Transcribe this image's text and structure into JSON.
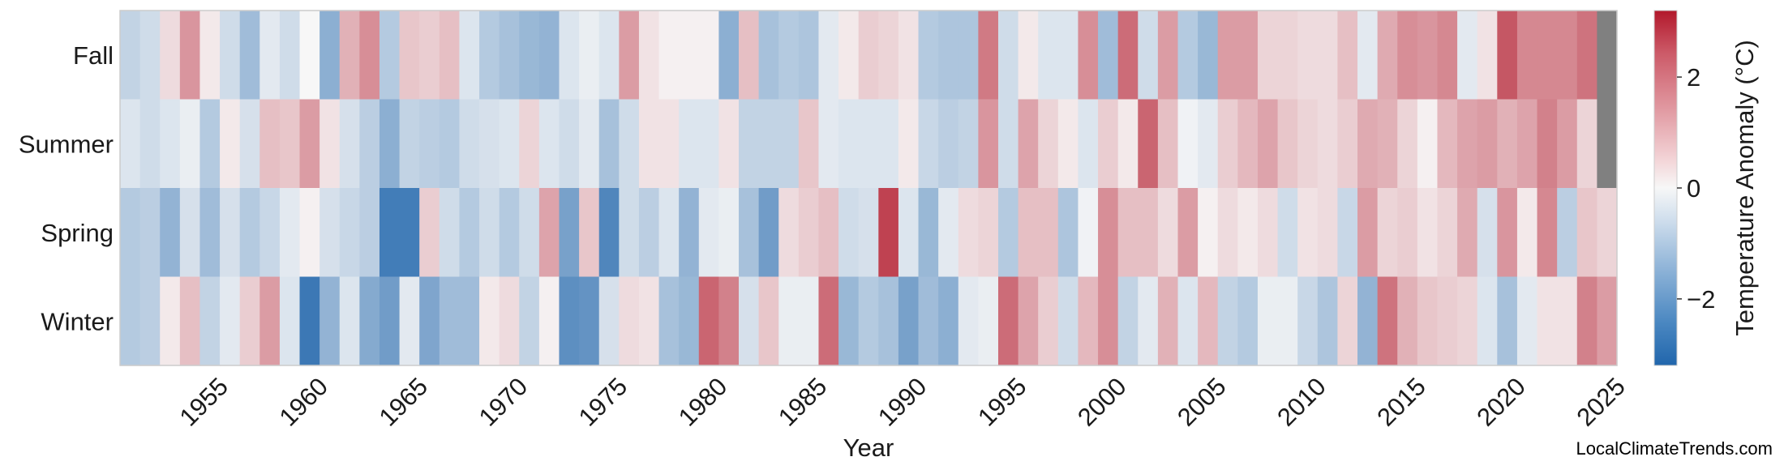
{
  "chart_data": {
    "type": "heatmap",
    "xlabel": "Year",
    "colorbar_label": "Temperature Anomaly (°C)",
    "rows": [
      "Fall",
      "Summer",
      "Spring",
      "Winter"
    ],
    "x_ticks": [
      1955,
      1960,
      1965,
      1970,
      1975,
      1980,
      1985,
      1990,
      1995,
      2000,
      2005,
      2010,
      2015,
      2020,
      2025
    ],
    "year_start": 1951,
    "year_end": 2025,
    "color_range": [
      -3.2,
      3.2
    ],
    "colorbar_ticks": [
      -2,
      0,
      2
    ],
    "colormap": [
      "#2166ac",
      "#f7f7f7",
      "#b2182b"
    ],
    "missing_color": "#808080",
    "values": {
      "Fall": [
        -0.8,
        -0.6,
        0.4,
        1.4,
        0.2,
        -0.6,
        -1.3,
        -0.3,
        -0.6,
        0.0,
        -1.6,
        1.0,
        1.5,
        -1.0,
        0.7,
        0.6,
        0.8,
        -0.4,
        -1.0,
        -1.2,
        -1.4,
        -1.5,
        -0.4,
        -0.2,
        -0.4,
        1.3,
        0.3,
        0.1,
        0.1,
        0.1,
        -1.6,
        0.8,
        -1.2,
        -1.0,
        -1.1,
        -0.3,
        0.2,
        0.6,
        0.5,
        0.3,
        -1.0,
        -1.1,
        -1.1,
        1.8,
        -0.6,
        0.2,
        -0.4,
        -0.4,
        1.5,
        -1.3,
        2.0,
        -0.6,
        1.3,
        -1.0,
        -1.4,
        1.3,
        1.3,
        0.5,
        0.5,
        0.4,
        0.4,
        0.8,
        -0.3,
        1.1,
        1.5,
        1.4,
        1.6,
        -0.3,
        0.3,
        2.3,
        1.6,
        1.6,
        1.6,
        1.9,
        null
      ],
      "Summer": [
        -0.4,
        -0.6,
        -0.4,
        -0.2,
        -1.0,
        0.2,
        -0.5,
        0.8,
        0.7,
        1.3,
        0.3,
        -0.5,
        -0.9,
        -1.6,
        -0.8,
        -0.9,
        -1.0,
        -0.6,
        -0.5,
        -0.4,
        0.5,
        -0.4,
        -0.6,
        -0.3,
        -1.2,
        -0.6,
        0.3,
        0.3,
        -0.4,
        -0.4,
        0.3,
        -0.8,
        -0.8,
        -0.8,
        0.7,
        -0.3,
        -0.4,
        -0.4,
        -0.4,
        0.2,
        -0.7,
        -0.9,
        -0.8,
        1.4,
        -0.6,
        1.2,
        0.5,
        0.2,
        -0.4,
        0.6,
        0.2,
        2.1,
        0.8,
        -0.1,
        -0.3,
        0.6,
        0.9,
        1.2,
        0.7,
        0.5,
        0.4,
        0.6,
        1.1,
        1.0,
        0.5,
        0.1,
        0.9,
        1.2,
        1.3,
        1.0,
        1.2,
        1.7,
        1.3,
        0.5,
        null
      ],
      "Spring": [
        -1.0,
        -0.9,
        -1.5,
        -0.5,
        -1.3,
        -0.5,
        -1.0,
        -0.7,
        -0.3,
        0.1,
        -0.5,
        -0.7,
        -0.9,
        -2.7,
        -2.7,
        0.6,
        -0.6,
        -1.0,
        -0.6,
        -1.0,
        -0.6,
        1.2,
        -1.9,
        0.7,
        -2.5,
        -0.6,
        -0.9,
        -0.4,
        -1.5,
        -0.3,
        -0.2,
        -1.2,
        -2.0,
        0.4,
        0.6,
        0.8,
        -0.6,
        -0.5,
        2.6,
        -0.4,
        -1.4,
        -0.3,
        0.4,
        0.5,
        -1.0,
        0.8,
        0.8,
        -1.1,
        -0.1,
        1.5,
        0.8,
        0.8,
        0.4,
        1.3,
        0.1,
        0.4,
        0.2,
        0.4,
        -0.6,
        0.3,
        0.4,
        -0.7,
        1.3,
        0.5,
        0.6,
        0.3,
        0.5,
        1.1,
        -0.5,
        1.4,
        0.2,
        1.6,
        -0.9,
        0.7,
        0.5
      ],
      "Winter": [
        -1.0,
        -0.9,
        0.2,
        0.8,
        -0.8,
        -0.3,
        0.6,
        1.3,
        -0.4,
        -2.8,
        -1.5,
        -0.4,
        -1.7,
        -2.0,
        -0.3,
        -1.8,
        -1.3,
        -1.3,
        0.2,
        0.4,
        -0.8,
        0.1,
        -2.3,
        -2.2,
        -0.5,
        0.4,
        0.3,
        -1.2,
        -1.4,
        2.1,
        1.7,
        -0.5,
        0.7,
        -0.2,
        -0.2,
        2.0,
        -1.4,
        -1.0,
        -1.2,
        -1.9,
        -1.3,
        -1.6,
        -0.3,
        -0.2,
        2.0,
        1.2,
        0.6,
        -0.6,
        0.9,
        1.5,
        -0.8,
        -0.3,
        1.0,
        -0.4,
        0.9,
        -0.8,
        -1.0,
        -0.2,
        -0.2,
        -0.7,
        -1.1,
        0.5,
        -1.5,
        1.9,
        1.0,
        0.7,
        0.6,
        0.5,
        -0.4,
        -1.2,
        -0.3,
        0.3,
        0.3,
        1.7,
        1.3
      ]
    }
  },
  "footer": {
    "watermark": "LocalClimateTrends.com"
  }
}
